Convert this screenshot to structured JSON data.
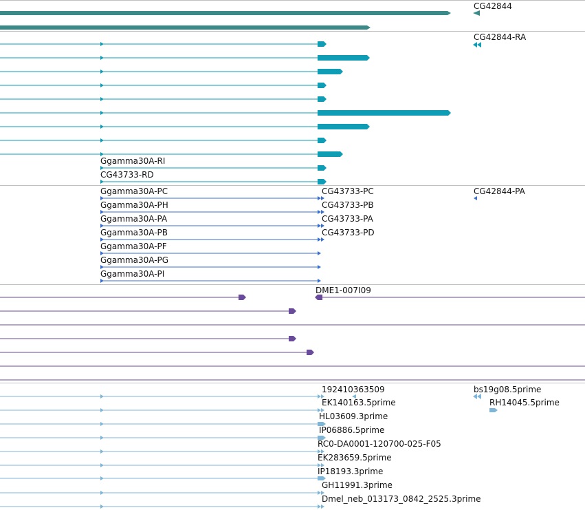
{
  "colors": {
    "gene": "#3a8a8a",
    "mrna": "#0e9db5",
    "cds": "#3a6fcf",
    "clone": "#6a4a9a",
    "est": "#7fb6d8",
    "separator": "#bfbfbf",
    "label": "#111111"
  },
  "tracks": {
    "gene": {
      "labels": [
        "CG42844"
      ]
    },
    "mrna": {
      "labels": [
        "CG42844-RA",
        "Ggamma30A-RI",
        "CG43733-RD"
      ]
    },
    "cds": {
      "labels": [
        "Ggamma30A-PC",
        "Ggamma30A-PH",
        "Ggamma30A-PA",
        "Ggamma30A-PB",
        "Ggamma30A-PF",
        "Ggamma30A-PG",
        "Ggamma30A-PI",
        "CG43733-PC",
        "CG43733-PB",
        "CG43733-PA",
        "CG43733-PD",
        "CG42844-PA"
      ]
    },
    "clone": {
      "labels": [
        "DME1-007I09"
      ]
    },
    "est": {
      "labels": [
        "192410363509",
        "EK140163.5prime",
        "HL03609.3prime",
        "IP06886.5prime",
        "RC0-DA0001-120700-025-F05",
        "EK283659.5prime",
        "IP18193.3prime",
        "GH11991.3prime",
        "Dmel_neb_013173_0842_2525.3prime",
        "bs19g08.5prime",
        "RH14045.5prime"
      ]
    }
  }
}
